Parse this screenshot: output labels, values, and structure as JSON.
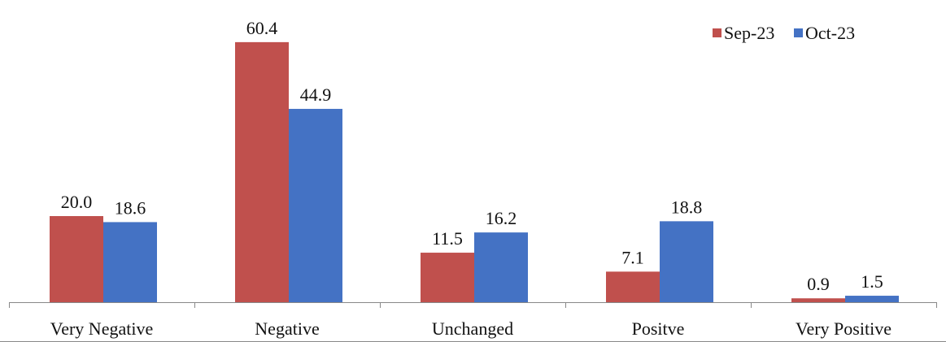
{
  "chart_data": {
    "type": "bar",
    "title": "",
    "xlabel": "",
    "ylabel": "",
    "ylim": [
      0,
      65
    ],
    "grid": false,
    "legend_position": "top-right",
    "categories": [
      "Very Negative",
      "Negative",
      "Unchanged",
      "Positve",
      "Very Positive"
    ],
    "series": [
      {
        "name": "Sep-23",
        "color": "#C0504D",
        "values": [
          20.0,
          60.4,
          11.5,
          7.1,
          0.9
        ],
        "labels": [
          "20.0",
          "60.4",
          "11.5",
          "7.1",
          "0.9"
        ]
      },
      {
        "name": "Oct-23",
        "color": "#4472C4",
        "values": [
          18.6,
          44.9,
          16.2,
          18.8,
          1.5
        ],
        "labels": [
          "18.6",
          "44.9",
          "16.2",
          "18.8",
          "1.5"
        ]
      }
    ]
  }
}
